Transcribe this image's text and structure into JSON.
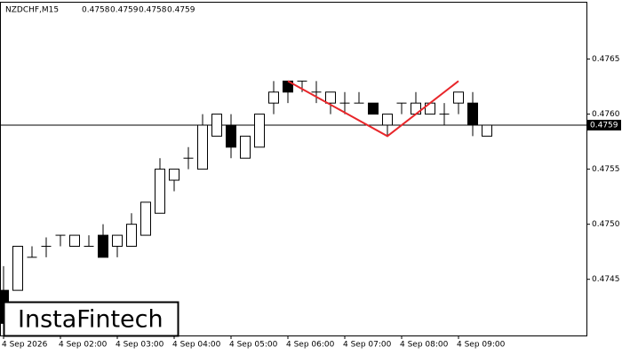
{
  "chart_data": {
    "type": "candlestick",
    "title": "NZDCHF,M15",
    "header_values": [
      0.4758,
      0.4759,
      0.4758,
      0.4759
    ],
    "watermark": "InstaFintech",
    "categories": [
      "4 Sep 2026",
      null,
      null,
      null,
      "4 Sep 02:00",
      null,
      null,
      null,
      "4 Sep 03:00",
      null,
      null,
      null,
      "4 Sep 04:00",
      null,
      null,
      null,
      "4 Sep 05:00",
      null,
      null,
      null,
      "4 Sep 06:00",
      null,
      null,
      null,
      "4 Sep 07:00",
      null,
      null,
      null,
      "4 Sep 08:00",
      null,
      null,
      null,
      "4 Sep 09:00",
      null,
      null
    ],
    "open": [
      0.4744,
      0.4744,
      0.4747,
      0.4748,
      0.4749,
      0.4748,
      0.4748,
      0.4749,
      0.4748,
      0.4748,
      0.4749,
      0.4751,
      0.4754,
      0.4756,
      0.4755,
      0.4758,
      0.4759,
      0.4756,
      0.4757,
      0.4761,
      0.4763,
      0.4763,
      0.4762,
      0.4761,
      0.4761,
      0.4761,
      0.4761,
      0.4759,
      0.4761,
      0.476,
      0.476,
      0.476,
      0.4761,
      0.4761,
      0.4758
    ],
    "high": [
      0.47462,
      0.4748,
      0.4748,
      0.47488,
      0.4749,
      0.4749,
      0.4749,
      0.475,
      0.4749,
      0.4751,
      0.4752,
      0.4756,
      0.4755,
      0.4757,
      0.476,
      0.476,
      0.476,
      0.4758,
      0.476,
      0.4763,
      0.4763,
      0.4763,
      0.4763,
      0.4762,
      0.4762,
      0.4762,
      0.4761,
      0.476,
      0.4761,
      0.4762,
      0.4761,
      0.4761,
      0.4762,
      0.4762,
      0.4759
    ],
    "low": [
      0.474,
      0.4744,
      0.4747,
      0.4747,
      0.4748,
      0.4748,
      0.4748,
      0.4747,
      0.4747,
      0.4748,
      0.4749,
      0.4751,
      0.4753,
      0.4755,
      0.4755,
      0.4758,
      0.4756,
      0.4756,
      0.4757,
      0.476,
      0.4761,
      0.4762,
      0.4761,
      0.476,
      0.476,
      0.4761,
      0.476,
      0.4758,
      0.476,
      0.476,
      0.476,
      0.4759,
      0.476,
      0.4758,
      0.4758
    ],
    "close": [
      0.4741,
      0.4748,
      0.4747,
      0.4748,
      0.4749,
      0.4749,
      0.4748,
      0.4747,
      0.4749,
      0.475,
      0.4752,
      0.4755,
      0.4755,
      0.4756,
      0.4759,
      0.476,
      0.4757,
      0.4758,
      0.476,
      0.4762,
      0.4762,
      0.4763,
      0.4762,
      0.4762,
      0.4761,
      0.4761,
      0.476,
      0.476,
      0.4761,
      0.4761,
      0.4761,
      0.476,
      0.4762,
      0.4759,
      0.4759
    ],
    "up_color": "#ffffff",
    "down_color": "#000000",
    "current_price": 0.4759,
    "pattern": {
      "color": "#e8262a",
      "x": [
        20,
        27,
        32
      ],
      "values": [
        0.4763,
        0.4758,
        0.4763
      ]
    },
    "ylim": [
      0.47399,
      0.47702
    ],
    "yticks": [
      0.4745,
      {
        "value": 0.475,
        "label": "0.4750"
      },
      0.4755,
      {
        "value": 0.476,
        "label": "0.4760"
      },
      0.4765
    ]
  }
}
